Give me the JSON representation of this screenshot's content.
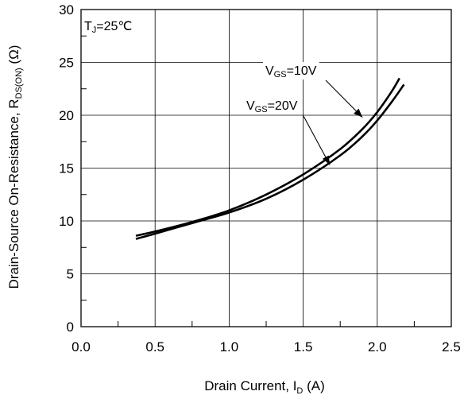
{
  "chart_data": {
    "type": "line",
    "xlabel": {
      "main": "Drain Current, I",
      "sub": "D",
      "tail": " (A)"
    },
    "ylabel": {
      "main": "Drain-Source On-Resistance, R",
      "sub": "DS(ON)",
      "tail": " (Ω)"
    },
    "xlim": [
      0.0,
      2.5
    ],
    "ylim": [
      0,
      30
    ],
    "x_ticks": [
      0.0,
      0.5,
      1.0,
      1.5,
      2.0,
      2.5
    ],
    "x_tick_labels": [
      "0.0",
      "0.5",
      "1.0",
      "1.5",
      "2.0",
      "2.5"
    ],
    "y_ticks": [
      0,
      5,
      10,
      15,
      20,
      25,
      30
    ],
    "y_tick_labels": [
      "0",
      "5",
      "10",
      "15",
      "20",
      "25",
      "30"
    ],
    "grid": true,
    "condition": {
      "main": "T",
      "sub": "J",
      "tail": "=25℃"
    },
    "series": [
      {
        "name": "VGS=10V",
        "label": {
          "main": "V",
          "sub": "GS",
          "tail": "=10V"
        },
        "x": [
          0.37,
          0.5,
          0.75,
          1.0,
          1.25,
          1.5,
          1.75,
          1.9,
          2.0,
          2.1,
          2.15
        ],
        "y": [
          8.6,
          9.0,
          9.9,
          11.0,
          12.5,
          14.4,
          16.8,
          18.7,
          20.3,
          22.3,
          23.5
        ]
      },
      {
        "name": "VGS=20V",
        "label": {
          "main": "V",
          "sub": "GS",
          "tail": "=20V"
        },
        "x": [
          0.37,
          0.5,
          0.75,
          1.0,
          1.25,
          1.5,
          1.75,
          1.9,
          2.0,
          2.1,
          2.18
        ],
        "y": [
          8.3,
          8.8,
          9.8,
          10.8,
          12.1,
          13.9,
          16.2,
          18.0,
          19.5,
          21.3,
          22.9
        ]
      }
    ]
  }
}
